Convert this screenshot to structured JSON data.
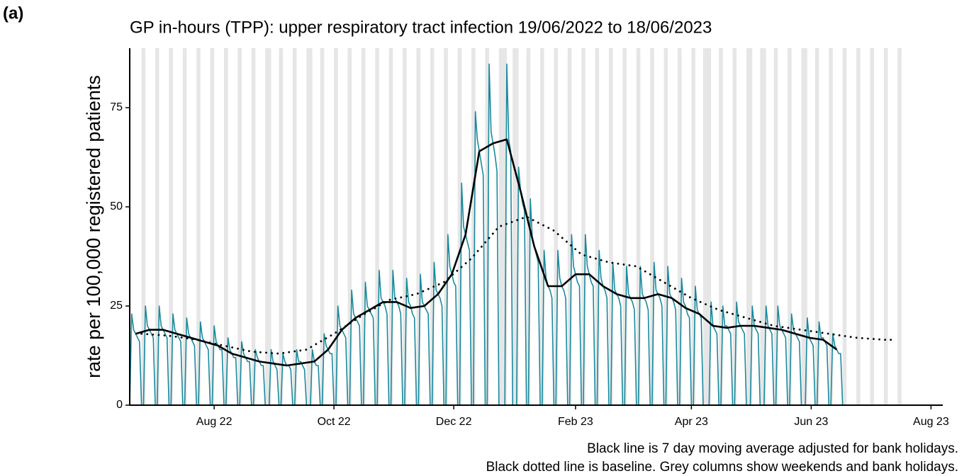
{
  "chart_data": {
    "type": "line",
    "panel_label": "(a)",
    "title": "GP in-hours (TPP): upper respiratory tract infection 19/06/2022 to 18/06/2023",
    "y_label": "rate per 100,000 registered patients",
    "caption": [
      "Black line is 7 day moving average adjusted for bank holidays.",
      "Black dotted line is baseline. Grey columns show weekends and bank holidays."
    ],
    "xlim": [
      "2022-06-19",
      "2023-08-07"
    ],
    "ylim": [
      0,
      90
    ],
    "yticks": [
      0,
      25,
      50,
      75
    ],
    "xticks": [
      {
        "value": "2022-08-01",
        "label": "Aug 22"
      },
      {
        "value": "2022-10-01",
        "label": "Oct 22"
      },
      {
        "value": "2022-12-01",
        "label": "Dec 22"
      },
      {
        "value": "2023-02-01",
        "label": "Feb 23"
      },
      {
        "value": "2023-04-01",
        "label": "Apr 23"
      },
      {
        "value": "2023-06-01",
        "label": "Jun 23"
      },
      {
        "value": "2023-08-01",
        "label": "Aug 23"
      }
    ],
    "shade_color": "#e6e6e6",
    "weekends": [
      "2022-06-25",
      "2022-07-02",
      "2022-07-09",
      "2022-07-16",
      "2022-07-23",
      "2022-07-30",
      "2022-08-06",
      "2022-08-13",
      "2022-08-20",
      "2022-08-27",
      "2022-09-03",
      "2022-09-10",
      "2022-09-17",
      "2022-09-24",
      "2022-10-01",
      "2022-10-08",
      "2022-10-15",
      "2022-10-22",
      "2022-10-29",
      "2022-11-05",
      "2022-11-12",
      "2022-11-19",
      "2022-11-26",
      "2022-12-03",
      "2022-12-10",
      "2022-12-17",
      "2022-12-24",
      "2022-12-31",
      "2023-01-07",
      "2023-01-14",
      "2023-01-21",
      "2023-01-28",
      "2023-02-04",
      "2023-02-11",
      "2023-02-18",
      "2023-02-25",
      "2023-03-04",
      "2023-03-11",
      "2023-03-18",
      "2023-03-25",
      "2023-04-01",
      "2023-04-08",
      "2023-04-15",
      "2023-04-22",
      "2023-04-29",
      "2023-05-06",
      "2023-05-13",
      "2023-05-20",
      "2023-05-27",
      "2023-06-03",
      "2023-06-10",
      "2023-06-17",
      "2023-06-24",
      "2023-07-01",
      "2023-07-08",
      "2023-07-15"
    ],
    "bank_holidays": [
      "2022-08-29",
      "2022-09-19",
      "2022-12-26",
      "2022-12-27",
      "2023-01-02",
      "2023-04-07",
      "2023-04-10",
      "2023-05-01",
      "2023-05-08",
      "2023-05-29"
    ],
    "series": [
      {
        "style": "daily",
        "color": "#1a8a9e",
        "x": [
          "2022-06-19",
          "2022-06-20",
          "2022-06-21",
          "2022-06-22",
          "2022-06-23",
          "2022-06-24",
          "2022-06-25",
          "2022-06-26",
          "2022-06-27",
          "2022-06-28",
          "2022-06-29",
          "2022-06-30",
          "2022-07-01",
          "2022-07-02",
          "2022-07-03",
          "2022-07-04",
          "2022-07-05",
          "2022-07-06",
          "2022-07-07",
          "2022-07-08",
          "2022-07-09",
          "2022-07-10",
          "2022-07-11",
          "2022-07-12",
          "2022-07-13",
          "2022-07-14",
          "2022-07-15",
          "2022-07-16",
          "2022-07-17",
          "2022-07-18",
          "2022-07-19",
          "2022-07-20",
          "2022-07-21",
          "2022-07-22",
          "2022-07-23",
          "2022-07-24",
          "2022-07-25",
          "2022-07-26",
          "2022-07-27",
          "2022-07-28",
          "2022-07-29",
          "2022-07-30",
          "2022-07-31",
          "2022-08-01",
          "2022-08-02",
          "2022-08-03",
          "2022-08-04",
          "2022-08-05",
          "2022-08-06",
          "2022-08-07",
          "2022-08-08",
          "2022-08-09",
          "2022-08-10",
          "2022-08-11",
          "2022-08-12",
          "2022-08-13",
          "2022-08-14",
          "2022-08-15",
          "2022-08-16",
          "2022-08-17",
          "2022-08-18",
          "2022-08-19",
          "2022-08-20",
          "2022-08-21",
          "2022-08-22",
          "2022-08-23",
          "2022-08-24",
          "2022-08-25",
          "2022-08-26",
          "2022-08-27",
          "2022-08-28",
          "2022-08-29",
          "2022-08-30",
          "2022-08-31",
          "2022-09-01",
          "2022-09-02",
          "2022-09-03",
          "2022-09-04",
          "2022-09-05",
          "2022-09-06",
          "2022-09-07",
          "2022-09-08",
          "2022-09-09",
          "2022-09-10",
          "2022-09-11",
          "2022-09-12",
          "2022-09-13",
          "2022-09-14",
          "2022-09-15",
          "2022-09-16",
          "2022-09-17",
          "2022-09-18",
          "2022-09-19",
          "2022-09-20",
          "2022-09-21",
          "2022-09-22",
          "2022-09-23",
          "2022-09-24",
          "2022-09-25",
          "2022-09-26",
          "2022-09-27",
          "2022-09-28",
          "2022-09-29",
          "2022-09-30",
          "2022-10-01",
          "2022-10-02",
          "2022-10-03",
          "2022-10-04",
          "2022-10-05",
          "2022-10-06",
          "2022-10-07",
          "2022-10-08",
          "2022-10-09",
          "2022-10-10",
          "2022-10-11",
          "2022-10-12",
          "2022-10-13",
          "2022-10-14",
          "2022-10-15",
          "2022-10-16",
          "2022-10-17",
          "2022-10-18",
          "2022-10-19",
          "2022-10-20",
          "2022-10-21",
          "2022-10-22",
          "2022-10-23",
          "2022-10-24",
          "2022-10-25",
          "2022-10-26",
          "2022-10-27",
          "2022-10-28",
          "2022-10-29",
          "2022-10-30",
          "2022-10-31",
          "2022-11-01",
          "2022-11-02",
          "2022-11-03",
          "2022-11-04",
          "2022-11-05",
          "2022-11-06",
          "2022-11-07",
          "2022-11-08",
          "2022-11-09",
          "2022-11-10",
          "2022-11-11",
          "2022-11-12",
          "2022-11-13",
          "2022-11-14",
          "2022-11-15",
          "2022-11-16",
          "2022-11-17",
          "2022-11-18",
          "2022-11-19",
          "2022-11-20",
          "2022-11-21",
          "2022-11-22",
          "2022-11-23",
          "2022-11-24",
          "2022-11-25",
          "2022-11-26",
          "2022-11-27",
          "2022-11-28",
          "2022-11-29",
          "2022-11-30",
          "2022-12-01",
          "2022-12-02",
          "2022-12-03",
          "2022-12-04",
          "2022-12-05",
          "2022-12-06",
          "2022-12-07",
          "2022-12-08",
          "2022-12-09",
          "2022-12-10",
          "2022-12-11",
          "2022-12-12",
          "2022-12-13",
          "2022-12-14",
          "2022-12-15",
          "2022-12-16",
          "2022-12-17",
          "2022-12-18",
          "2022-12-19",
          "2022-12-20",
          "2022-12-21",
          "2022-12-22",
          "2022-12-23",
          "2022-12-24",
          "2022-12-25",
          "2022-12-26",
          "2022-12-27",
          "2022-12-28",
          "2022-12-29",
          "2022-12-30",
          "2022-12-31",
          "2023-01-01",
          "2023-01-02",
          "2023-01-03",
          "2023-01-04",
          "2023-01-05",
          "2023-01-06",
          "2023-01-07",
          "2023-01-08",
          "2023-01-09",
          "2023-01-10",
          "2023-01-11",
          "2023-01-12",
          "2023-01-13",
          "2023-01-14",
          "2023-01-15",
          "2023-01-16",
          "2023-01-17",
          "2023-01-18",
          "2023-01-19",
          "2023-01-20",
          "2023-01-21",
          "2023-01-22",
          "2023-01-23",
          "2023-01-24",
          "2023-01-25",
          "2023-01-26",
          "2023-01-27",
          "2023-01-28",
          "2023-01-29",
          "2023-01-30",
          "2023-01-31",
          "2023-02-01",
          "2023-02-02",
          "2023-02-03",
          "2023-02-04",
          "2023-02-05",
          "2023-02-06",
          "2023-02-07",
          "2023-02-08",
          "2023-02-09",
          "2023-02-10",
          "2023-02-11",
          "2023-02-12",
          "2023-02-13",
          "2023-02-14",
          "2023-02-15",
          "2023-02-16",
          "2023-02-17",
          "2023-02-18",
          "2023-02-19",
          "2023-02-20",
          "2023-02-21",
          "2023-02-22",
          "2023-02-23",
          "2023-02-24",
          "2023-02-25",
          "2023-02-26",
          "2023-02-27",
          "2023-02-28",
          "2023-03-01",
          "2023-03-02",
          "2023-03-03",
          "2023-03-04",
          "2023-03-05",
          "2023-03-06",
          "2023-03-07",
          "2023-03-08",
          "2023-03-09",
          "2023-03-10",
          "2023-03-11",
          "2023-03-12",
          "2023-03-13",
          "2023-03-14",
          "2023-03-15",
          "2023-03-16",
          "2023-03-17",
          "2023-03-18",
          "2023-03-19",
          "2023-03-20",
          "2023-03-21",
          "2023-03-22",
          "2023-03-23",
          "2023-03-24",
          "2023-03-25",
          "2023-03-26",
          "2023-03-27",
          "2023-03-28",
          "2023-03-29",
          "2023-03-30",
          "2023-03-31",
          "2023-04-01",
          "2023-04-02",
          "2023-04-03",
          "2023-04-04",
          "2023-04-05",
          "2023-04-06",
          "2023-04-07",
          "2023-04-08",
          "2023-04-09",
          "2023-04-10",
          "2023-04-11",
          "2023-04-12",
          "2023-04-13",
          "2023-04-14",
          "2023-04-15",
          "2023-04-16",
          "2023-04-17",
          "2023-04-18",
          "2023-04-19",
          "2023-04-20",
          "2023-04-21",
          "2023-04-22",
          "2023-04-23",
          "2023-04-24",
          "2023-04-25",
          "2023-04-26",
          "2023-04-27",
          "2023-04-28",
          "2023-04-29",
          "2023-04-30",
          "2023-05-01",
          "2023-05-02",
          "2023-05-03",
          "2023-05-04",
          "2023-05-05",
          "2023-05-06",
          "2023-05-07",
          "2023-05-08",
          "2023-05-09",
          "2023-05-10",
          "2023-05-11",
          "2023-05-12",
          "2023-05-13",
          "2023-05-14",
          "2023-05-15",
          "2023-05-16",
          "2023-05-17",
          "2023-05-18",
          "2023-05-19",
          "2023-05-20",
          "2023-05-21",
          "2023-05-22",
          "2023-05-23",
          "2023-05-24",
          "2023-05-25",
          "2023-05-26",
          "2023-05-27",
          "2023-05-28",
          "2023-05-29",
          "2023-05-30",
          "2023-05-31",
          "2023-06-01",
          "2023-06-02",
          "2023-06-03",
          "2023-06-04",
          "2023-06-05",
          "2023-06-06",
          "2023-06-07",
          "2023-06-08",
          "2023-06-09",
          "2023-06-10",
          "2023-06-11",
          "2023-06-12",
          "2023-06-13",
          "2023-06-14",
          "2023-06-15",
          "2023-06-16",
          "2023-06-17",
          "2023-06-18"
        ],
        "values": [
          0,
          23,
          19,
          18,
          17,
          16,
          0,
          0,
          25,
          20,
          19,
          18,
          17,
          0,
          0,
          25,
          20,
          19,
          18,
          17,
          0,
          0,
          23,
          19,
          18,
          17,
          16,
          0,
          0,
          22,
          18,
          17,
          16,
          15,
          0,
          0,
          21,
          17,
          16,
          15,
          14,
          0,
          0,
          20,
          16,
          15,
          14,
          14,
          0,
          0,
          17,
          14,
          13,
          12,
          12,
          0,
          0,
          16,
          13,
          12,
          11,
          11,
          0,
          0,
          14,
          12,
          11,
          10,
          10,
          0,
          0,
          0,
          14,
          11,
          10,
          9,
          0,
          0,
          13,
          11,
          10,
          10,
          9,
          0,
          0,
          14,
          11,
          11,
          10,
          9,
          0,
          0,
          0,
          14,
          11,
          10,
          10,
          0,
          0,
          18,
          15,
          14,
          13,
          13,
          0,
          0,
          25,
          20,
          19,
          18,
          17,
          0,
          0,
          29,
          23,
          22,
          21,
          20,
          0,
          0,
          31,
          25,
          24,
          23,
          22,
          0,
          0,
          34,
          27,
          26,
          25,
          23,
          0,
          0,
          34,
          27,
          26,
          25,
          23,
          0,
          0,
          32,
          26,
          25,
          23,
          22,
          0,
          0,
          33,
          26,
          25,
          24,
          23,
          0,
          0,
          36,
          29,
          28,
          27,
          25,
          0,
          0,
          43,
          35,
          33,
          31,
          30,
          0,
          0,
          56,
          45,
          43,
          41,
          39,
          0,
          0,
          74,
          67,
          64,
          61,
          58,
          0,
          0,
          86,
          69,
          66,
          63,
          59,
          0,
          0,
          0,
          0,
          86,
          67,
          64,
          0,
          0,
          0,
          60,
          54,
          51,
          49,
          0,
          0,
          52,
          42,
          40,
          38,
          36,
          0,
          0,
          39,
          32,
          30,
          29,
          27,
          0,
          0,
          39,
          32,
          30,
          29,
          27,
          0,
          0,
          43,
          35,
          33,
          31,
          30,
          0,
          0,
          43,
          35,
          33,
          31,
          30,
          0,
          0,
          39,
          32,
          30,
          29,
          27,
          0,
          0,
          36,
          29,
          28,
          27,
          25,
          0,
          0,
          35,
          28,
          27,
          26,
          24,
          0,
          0,
          35,
          28,
          27,
          26,
          24,
          0,
          0,
          36,
          29,
          28,
          27,
          25,
          0,
          0,
          35,
          28,
          27,
          26,
          24,
          0,
          0,
          32,
          26,
          25,
          23,
          22,
          0,
          0,
          30,
          24,
          23,
          22,
          0,
          0,
          0,
          0,
          26,
          20,
          19,
          18,
          0,
          0,
          25,
          20,
          20,
          19,
          18,
          0,
          0,
          26,
          21,
          20,
          19,
          18,
          0,
          0,
          0,
          25,
          20,
          19,
          18,
          0,
          0,
          0,
          25,
          20,
          19,
          18,
          0,
          0,
          25,
          20,
          19,
          18,
          17,
          0,
          0,
          23,
          19,
          18,
          17,
          16,
          0,
          0,
          0,
          22,
          17,
          16,
          15,
          0,
          0,
          21,
          17,
          17,
          16,
          15,
          0,
          0,
          18,
          15,
          14,
          13,
          13,
          0,
          0
        ]
      },
      {
        "style": "solid",
        "color": "#000000",
        "x": [
          "2022-06-22",
          "2022-06-29",
          "2022-07-06",
          "2022-07-13",
          "2022-07-20",
          "2022-07-27",
          "2022-08-03",
          "2022-08-10",
          "2022-08-17",
          "2022-08-24",
          "2022-08-31",
          "2022-09-07",
          "2022-09-14",
          "2022-09-21",
          "2022-09-28",
          "2022-10-05",
          "2022-10-12",
          "2022-10-19",
          "2022-10-26",
          "2022-11-02",
          "2022-11-09",
          "2022-11-16",
          "2022-11-23",
          "2022-11-30",
          "2022-12-07",
          "2022-12-14",
          "2022-12-21",
          "2022-12-28",
          "2023-01-04",
          "2023-01-11",
          "2023-01-18",
          "2023-01-25",
          "2023-02-01",
          "2023-02-08",
          "2023-02-15",
          "2023-02-22",
          "2023-03-01",
          "2023-03-08",
          "2023-03-15",
          "2023-03-22",
          "2023-03-29",
          "2023-04-05",
          "2023-04-12",
          "2023-04-19",
          "2023-04-26",
          "2023-05-03",
          "2023-05-10",
          "2023-05-17",
          "2023-05-24",
          "2023-05-31",
          "2023-06-07",
          "2023-06-14"
        ],
        "values": [
          18,
          19,
          19,
          18,
          17,
          16,
          15,
          13,
          12,
          11,
          10.5,
          10,
          10.5,
          11,
          14,
          19,
          22,
          24,
          26,
          26,
          24.5,
          25,
          28,
          33,
          43,
          64,
          66,
          67,
          54,
          40,
          30,
          30,
          33,
          33,
          30,
          28,
          27,
          27,
          28,
          27,
          24.5,
          23,
          20,
          19.5,
          20,
          20,
          19.5,
          19,
          18,
          17,
          16.5,
          14
        ]
      },
      {
        "style": "dotted",
        "color": "#000000",
        "x": [
          "2022-06-25",
          "2022-07-09",
          "2022-07-23",
          "2022-08-06",
          "2022-08-20",
          "2022-09-03",
          "2022-09-17",
          "2022-10-01",
          "2022-10-15",
          "2022-10-29",
          "2022-11-12",
          "2022-11-26",
          "2022-12-10",
          "2022-12-24",
          "2023-01-07",
          "2023-01-21",
          "2023-02-04",
          "2023-02-18",
          "2023-03-04",
          "2023-03-18",
          "2023-04-01",
          "2023-04-15",
          "2023-04-29",
          "2023-05-13",
          "2023-05-27",
          "2023-06-10",
          "2023-06-24",
          "2023-07-08",
          "2023-07-12"
        ],
        "values": [
          18,
          17.5,
          16.5,
          15,
          13.5,
          13,
          14,
          18,
          22.5,
          26.5,
          28,
          31,
          37,
          45,
          47.5,
          44,
          38,
          36,
          35,
          31,
          27,
          24,
          22,
          20,
          19,
          18,
          17,
          16.5,
          16.5
        ]
      }
    ]
  }
}
